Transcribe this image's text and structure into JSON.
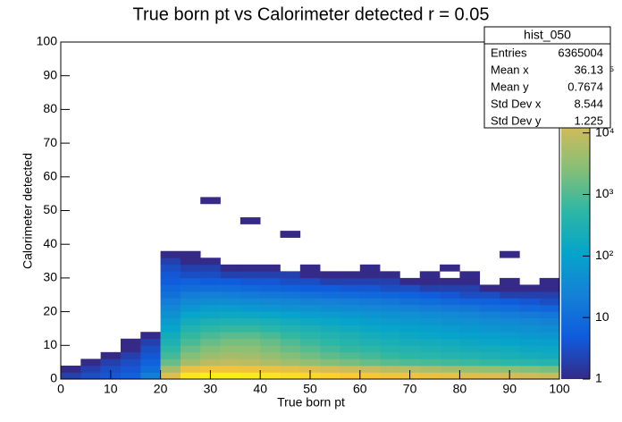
{
  "chart_data": {
    "type": "heatmap",
    "title": "True born pt vs Calorimeter detected r = 0.05",
    "x_label": "True born pt",
    "y_label": "Calorimeter detected",
    "xlim": [
      0,
      100
    ],
    "ylim": [
      0,
      100
    ],
    "xticks": [
      0,
      10,
      20,
      30,
      40,
      50,
      60,
      70,
      80,
      90,
      100
    ],
    "yticks": [
      0,
      10,
      20,
      30,
      40,
      50,
      60,
      70,
      80,
      90,
      100
    ],
    "zlim": [
      1,
      300000
    ],
    "zticks": [
      1,
      10,
      {
        "value": 100,
        "label": "10²"
      },
      {
        "value": 1000,
        "label": "10³"
      },
      {
        "value": 10000,
        "label": "10⁴"
      },
      {
        "value": 100000,
        "label": "10⁵"
      }
    ],
    "log_z": true,
    "colorscale": [
      "#352a87",
      "#0f5cdd",
      "#1481d6",
      "#06a4ca",
      "#2eb7a4",
      "#87bf77",
      "#d1bb59",
      "#fec832",
      "#f9fb0e"
    ],
    "xbins": [
      0,
      4,
      8,
      12,
      16,
      20,
      24,
      28,
      32,
      36,
      40,
      44,
      48,
      52,
      56,
      60,
      64,
      68,
      72,
      76,
      80,
      84,
      88,
      92,
      96,
      100
    ],
    "ybins": [
      0,
      2,
      4,
      6,
      8,
      10,
      12,
      14,
      16,
      18,
      20,
      22,
      24,
      26,
      28,
      30,
      32,
      34,
      36,
      38,
      40,
      42,
      44,
      46,
      48,
      50,
      52,
      54
    ],
    "values": [
      [
        2,
        3,
        4,
        6,
        20,
        20000,
        150000,
        200000,
        200000,
        180000,
        150000,
        120000,
        100000,
        80000,
        60000,
        50000,
        40000,
        35000,
        30000,
        25000,
        20000,
        18000,
        15000,
        12000,
        10000
      ],
      [
        1,
        2,
        3,
        4,
        10,
        5000,
        30000,
        40000,
        40000,
        35000,
        30000,
        25000,
        20000,
        15000,
        12000,
        10000,
        8000,
        7000,
        6000,
        5000,
        4000,
        3500,
        3000,
        2500,
        2000
      ],
      [
        null,
        1,
        2,
        3,
        6,
        1500,
        5000,
        8000,
        9000,
        8000,
        6000,
        4500,
        3500,
        2500,
        2000,
        1500,
        1200,
        1000,
        900,
        800,
        700,
        600,
        500,
        450,
        400
      ],
      [
        null,
        null,
        1,
        2,
        4,
        800,
        2500,
        4000,
        5000,
        4500,
        3500,
        2500,
        1800,
        1300,
        1000,
        800,
        600,
        500,
        450,
        400,
        350,
        300,
        250,
        220,
        200
      ],
      [
        null,
        null,
        null,
        1,
        3,
        500,
        1500,
        2500,
        3000,
        3000,
        2200,
        1500,
        1100,
        800,
        600,
        500,
        400,
        350,
        300,
        250,
        220,
        200,
        180,
        150,
        140
      ],
      [
        null,
        null,
        null,
        1,
        2,
        300,
        900,
        1500,
        2000,
        2000,
        1500,
        1000,
        700,
        500,
        400,
        300,
        250,
        220,
        200,
        180,
        150,
        130,
        110,
        100,
        90
      ],
      [
        null,
        null,
        null,
        null,
        1,
        200,
        600,
        900,
        1200,
        1200,
        900,
        600,
        450,
        350,
        280,
        220,
        180,
        150,
        130,
        110,
        100,
        90,
        80,
        70,
        60
      ],
      [
        null,
        null,
        null,
        null,
        null,
        120,
        350,
        500,
        600,
        600,
        450,
        350,
        280,
        220,
        180,
        140,
        120,
        100,
        90,
        80,
        70,
        60,
        50,
        45,
        40
      ],
      [
        null,
        null,
        null,
        null,
        null,
        80,
        200,
        280,
        300,
        300,
        250,
        200,
        160,
        130,
        110,
        90,
        80,
        70,
        60,
        50,
        45,
        40,
        35,
        30,
        25
      ],
      [
        null,
        null,
        null,
        null,
        null,
        50,
        120,
        150,
        160,
        150,
        130,
        110,
        90,
        80,
        70,
        60,
        50,
        45,
        40,
        35,
        30,
        25,
        20,
        18,
        15
      ],
      [
        null,
        null,
        null,
        null,
        null,
        30,
        60,
        80,
        80,
        70,
        60,
        50,
        45,
        40,
        35,
        30,
        28,
        25,
        20,
        18,
        15,
        12,
        10,
        8,
        7
      ],
      [
        null,
        null,
        null,
        null,
        null,
        20,
        35,
        40,
        40,
        35,
        30,
        28,
        25,
        22,
        20,
        18,
        15,
        12,
        10,
        8,
        7,
        6,
        5,
        4,
        3
      ],
      [
        null,
        null,
        null,
        null,
        null,
        12,
        20,
        22,
        20,
        18,
        15,
        14,
        12,
        10,
        9,
        8,
        7,
        6,
        5,
        4,
        3,
        3,
        2,
        2,
        2
      ],
      [
        null,
        null,
        null,
        null,
        null,
        8,
        10,
        10,
        10,
        8,
        7,
        6,
        5,
        5,
        4,
        4,
        3,
        3,
        2,
        2,
        2,
        1,
        1,
        1,
        1
      ],
      [
        null,
        null,
        null,
        null,
        null,
        5,
        6,
        5,
        5,
        4,
        4,
        3,
        3,
        2,
        2,
        2,
        2,
        1,
        1,
        1,
        1,
        null,
        1,
        null,
        1
      ],
      [
        null,
        null,
        null,
        null,
        null,
        4,
        3,
        3,
        2,
        2,
        2,
        2,
        1,
        1,
        1,
        1,
        1,
        null,
        1,
        null,
        1,
        null,
        null,
        null,
        null
      ],
      [
        null,
        null,
        null,
        null,
        null,
        3,
        2,
        2,
        1,
        1,
        1,
        null,
        1,
        null,
        null,
        1,
        null,
        null,
        null,
        1,
        null,
        null,
        null,
        null,
        null
      ],
      [
        null,
        null,
        null,
        null,
        null,
        2,
        1,
        1,
        null,
        null,
        null,
        null,
        null,
        null,
        null,
        null,
        null,
        null,
        null,
        null,
        null,
        null,
        null,
        null,
        null
      ],
      [
        null,
        null,
        null,
        null,
        null,
        1,
        1,
        null,
        null,
        null,
        null,
        null,
        null,
        null,
        null,
        null,
        null,
        null,
        null,
        null,
        null,
        null,
        1,
        null,
        null
      ],
      [
        null,
        null,
        null,
        null,
        null,
        null,
        null,
        null,
        null,
        null,
        null,
        null,
        null,
        null,
        null,
        null,
        null,
        null,
        null,
        null,
        null,
        null,
        null,
        null,
        null
      ],
      [
        null,
        null,
        null,
        null,
        null,
        null,
        null,
        null,
        null,
        null,
        null,
        null,
        null,
        null,
        null,
        null,
        null,
        null,
        null,
        null,
        null,
        null,
        null,
        null,
        null
      ],
      [
        null,
        null,
        null,
        null,
        null,
        null,
        null,
        null,
        null,
        null,
        null,
        1,
        null,
        null,
        null,
        null,
        null,
        null,
        null,
        null,
        null,
        null,
        null,
        null,
        null
      ],
      [
        null,
        null,
        null,
        null,
        null,
        null,
        null,
        null,
        null,
        null,
        null,
        null,
        null,
        null,
        null,
        null,
        null,
        null,
        null,
        null,
        null,
        null,
        null,
        null,
        null
      ],
      [
        null,
        null,
        null,
        null,
        null,
        null,
        null,
        null,
        null,
        1,
        null,
        null,
        null,
        null,
        null,
        null,
        null,
        null,
        null,
        null,
        null,
        null,
        null,
        null,
        null
      ],
      [
        null,
        null,
        null,
        null,
        null,
        null,
        null,
        null,
        null,
        null,
        null,
        null,
        null,
        null,
        null,
        null,
        null,
        null,
        null,
        null,
        null,
        null,
        null,
        null,
        null
      ],
      [
        null,
        null,
        null,
        null,
        null,
        null,
        null,
        null,
        null,
        null,
        null,
        null,
        null,
        null,
        null,
        null,
        null,
        null,
        null,
        null,
        null,
        null,
        null,
        null,
        null
      ],
      [
        null,
        null,
        null,
        null,
        null,
        null,
        null,
        1,
        null,
        null,
        null,
        null,
        null,
        null,
        null,
        null,
        null,
        null,
        null,
        null,
        null,
        null,
        null,
        null,
        null
      ]
    ],
    "stats": {
      "title": "hist_050",
      "rows": [
        {
          "label": "Entries",
          "value": 6365004
        },
        {
          "label": "Mean x",
          "value": 36.13
        },
        {
          "label": "Mean y",
          "value": 0.7674
        },
        {
          "label": "Std Dev x",
          "value": 8.544
        },
        {
          "label": "Std Dev y",
          "value": 1.225
        }
      ]
    }
  }
}
